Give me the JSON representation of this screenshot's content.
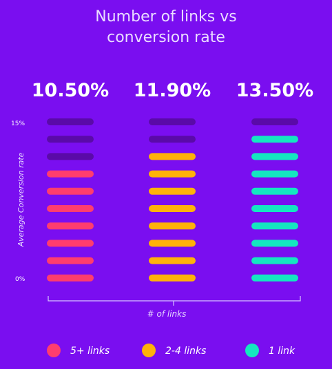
{
  "chart_data": {
    "type": "bar",
    "title_line1": "Number of links vs",
    "title_line2": "conversion rate",
    "ylabel": "Average Conversion rate",
    "xlabel": "# of links",
    "ylim": [
      0,
      15
    ],
    "y_ticks": [
      "15%",
      "0%"
    ],
    "segments_total": 10,
    "series": [
      {
        "name": "5+ links",
        "value_label": "10.50%",
        "value": 10.5,
        "filled_segments": 7,
        "color": "#ff3d6e"
      },
      {
        "name": "2-4 links",
        "value_label": "11.90%",
        "value": 11.9,
        "filled_segments": 8,
        "color": "#ffb20a"
      },
      {
        "name": "1 link",
        "value_label": "13.50%",
        "value": 13.5,
        "filled_segments": 9,
        "color": "#14e7c0"
      }
    ],
    "empty_color": "#5a0aa8",
    "legend_position": "bottom"
  }
}
